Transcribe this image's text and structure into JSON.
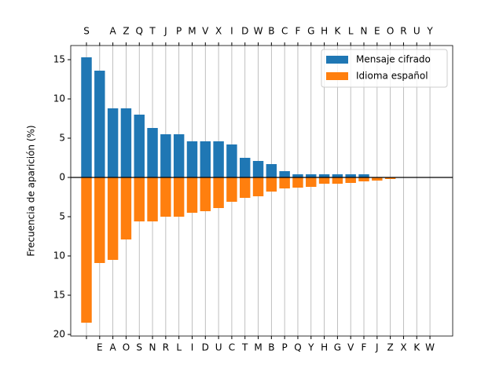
{
  "chart_data": {
    "type": "bar",
    "ylabel": "Frecuencia de aparición (%)",
    "top_categories": [
      "S",
      null,
      "A",
      "Z",
      "Q",
      "T",
      "J",
      "P",
      "M",
      "V",
      "X",
      "I",
      "D",
      "W",
      "B",
      "C",
      "F",
      "G",
      "H",
      "K",
      "L",
      "N",
      "E",
      "O",
      "R",
      "U",
      "Y"
    ],
    "categories": [
      null,
      "E",
      "A",
      "O",
      "S",
      "N",
      "R",
      "L",
      "I",
      "D",
      "U",
      "C",
      "T",
      "M",
      "B",
      "P",
      "Q",
      "Y",
      "H",
      "G",
      "V",
      "F",
      "J",
      "Z",
      "X",
      "K",
      "W"
    ],
    "series": [
      {
        "name": "Mensaje cifrado",
        "color": "#1f77b4",
        "values": [
          15.3,
          13.6,
          8.8,
          8.8,
          8.0,
          6.3,
          5.5,
          5.5,
          4.6,
          4.6,
          4.6,
          4.2,
          2.5,
          2.1,
          1.7,
          0.8,
          0.4,
          0.4,
          0.4,
          0.4,
          0.4,
          0.4,
          0,
          0,
          0,
          0,
          0
        ]
      },
      {
        "name": "Idioma español",
        "color": "#ff7f0e",
        "values": [
          -18.5,
          -10.9,
          -10.5,
          -7.9,
          -5.6,
          -5.6,
          -5.0,
          -5.0,
          -4.5,
          -4.3,
          -3.9,
          -3.1,
          -2.6,
          -2.4,
          -1.8,
          -1.4,
          -1.3,
          -1.2,
          -0.8,
          -0.8,
          -0.7,
          -0.5,
          -0.4,
          -0.2,
          0,
          0,
          0
        ]
      }
    ],
    "ylim": [
      -20.2,
      16.8
    ],
    "yticks": [
      15,
      10,
      5,
      0,
      {
        "value": -5,
        "label": "5"
      },
      {
        "value": -10,
        "label": "10"
      },
      {
        "value": -15,
        "label": "15"
      },
      {
        "value": -20,
        "label": "20"
      }
    ],
    "grid": true,
    "legend": "upper right"
  }
}
